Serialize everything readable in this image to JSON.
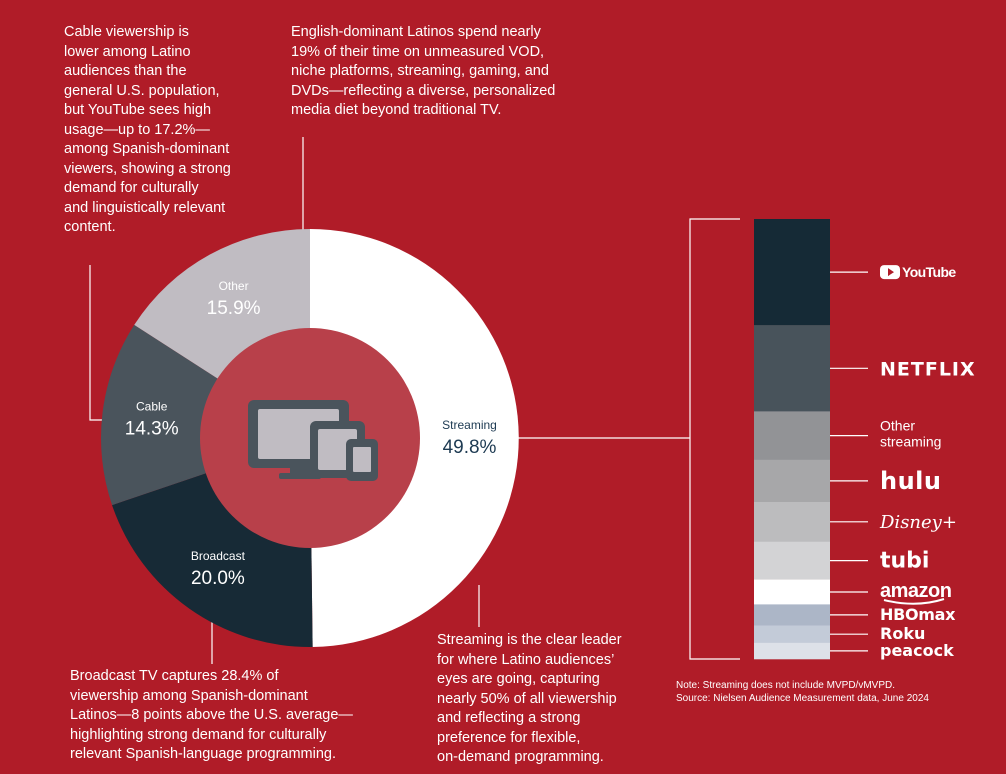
{
  "colors": {
    "background": "#b01c28",
    "center": "#b8404a",
    "streaming": "#ffffff",
    "broadcast": "#172a36",
    "cable": "#4a545c",
    "other": "#c0bcc2"
  },
  "callouts": {
    "cable": "Cable viewership is\nlower among Latino\naudiences than the\ngeneral U.S. population,\nbut YouTube sees high\nusage—up to 17.2%—\namong Spanish-dominant\nviewers, showing a strong\ndemand for culturally\nand linguistically relevant\ncontent.",
    "other": "English-dominant Latinos spend nearly\n19% of their time on unmeasured VOD,\nniche platforms, streaming, gaming, and\nDVDs—reflecting a diverse, personalized\nmedia diet beyond traditional TV.",
    "broadcast": "Broadcast TV captures 28.4% of\nviewership among Spanish-dominant\nLatinos—8 points above the U.S. average—\nhighlighting strong demand for culturally\nrelevant Spanish-language programming.",
    "streaming": "Streaming is the clear leader\nfor where Latino audiences’\neyes are going, capturing\nnearly 50% of all viewership\nand reflecting a strong\npreference for flexible,\non-demand programming."
  },
  "notes": {
    "note": "Note: Streaming does not include MVPD/vMVPD.",
    "source": "Source: Nielsen Audience Measurement data, June 2024"
  },
  "chart_data": [
    {
      "type": "pie",
      "donut": true,
      "title": "",
      "icon": "devices-icon",
      "slices": [
        {
          "name": "Streaming",
          "label": "49.8%",
          "value": 49.8,
          "color": "#ffffff",
          "text_color": "#1d3a52"
        },
        {
          "name": "Broadcast",
          "label": "20.0%",
          "value": 20.0,
          "color": "#172a36",
          "text_color": "#ffffff"
        },
        {
          "name": "Cable",
          "label": "14.3%",
          "value": 14.3,
          "color": "#4a545c",
          "text_color": "#ffffff"
        },
        {
          "name": "Other",
          "label": "15.9%",
          "value": 15.9,
          "color": "#c0bcc2",
          "text_color": "#ffffff"
        }
      ]
    },
    {
      "type": "bar",
      "stacked": true,
      "orientation": "vertical",
      "title": "",
      "series": [
        {
          "name": "YouTube",
          "value": 17.1,
          "color": "#152a36",
          "label_type": "logo",
          "logo": "youtube-logo"
        },
        {
          "name": "NETFLIX",
          "value": 13.9,
          "color": "#48535b",
          "label_type": "logo",
          "logo": "netflix-logo"
        },
        {
          "name": "Other\nstreaming",
          "value": 7.8,
          "color": "#929396",
          "label_type": "text"
        },
        {
          "name": "hulu",
          "value": 6.8,
          "color": "#a7a7a9",
          "label_type": "logo",
          "logo": "hulu-logo"
        },
        {
          "name": "Disney+",
          "value": 6.4,
          "color": "#bcbcbe",
          "label_type": "logo",
          "logo": "disney-plus-logo"
        },
        {
          "name": "tubi",
          "value": 6.1,
          "color": "#d3d3d5",
          "label_type": "logo",
          "logo": "tubi-logo"
        },
        {
          "name": "amazon",
          "value": 4.0,
          "color": "#ffffff",
          "label_type": "logo",
          "logo": "amazon-logo"
        },
        {
          "name": "HBOmax",
          "value": 3.4,
          "color": "#acb6c7",
          "label_type": "logo",
          "logo": "hbomax-logo"
        },
        {
          "name": "Roku",
          "value": 2.8,
          "color": "#c3cbd8",
          "label_type": "logo",
          "logo": "roku-logo"
        },
        {
          "name": "peacock",
          "value": 2.6,
          "color": "#dde1e8",
          "label_type": "logo",
          "logo": "peacock-logo"
        }
      ]
    }
  ]
}
